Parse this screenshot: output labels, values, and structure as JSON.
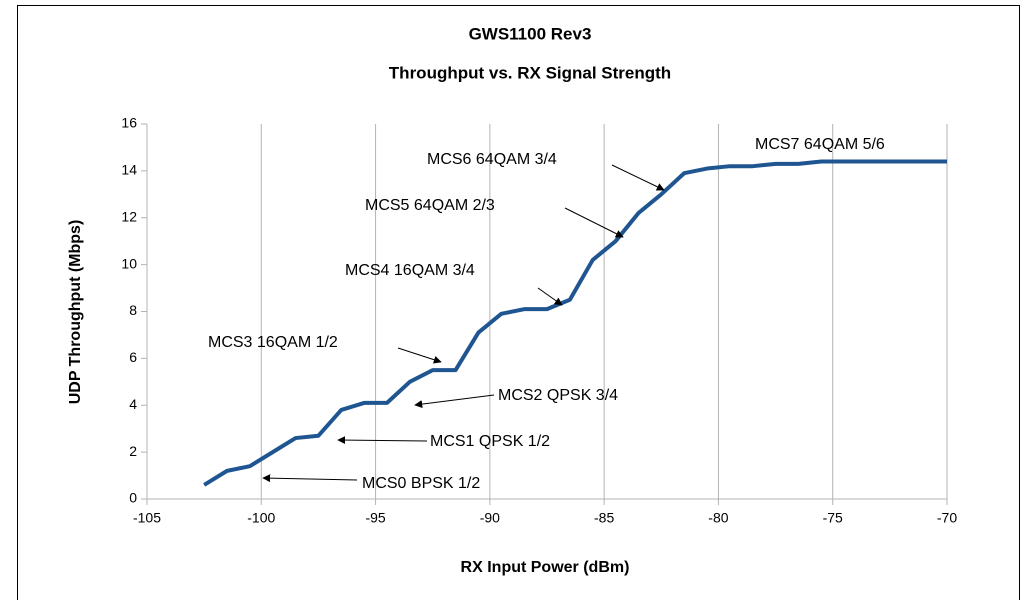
{
  "chart_data": {
    "type": "line",
    "title": "GWS1100 Rev3",
    "subtitle": "Throughput vs. RX Signal Strength",
    "x_label": "RX Input Power (dBm)",
    "y_label": "UDP Throughput (Mbps)",
    "x": [
      -102.5,
      -101.5,
      -100.5,
      -99.5,
      -98.5,
      -97.5,
      -96.5,
      -95.5,
      -94.5,
      -93.5,
      -92.5,
      -91.5,
      -90.5,
      -89.5,
      -88.5,
      -87.5,
      -86.5,
      -85.5,
      -84.5,
      -83.5,
      -82.5,
      -81.5,
      -80.5,
      -79.5,
      -78.5,
      -77.5,
      -76.5,
      -75.5,
      -70
    ],
    "series": [
      {
        "name": "UDP Throughput",
        "color": "#1f5591",
        "values": [
          0.6,
          1.2,
          1.4,
          2.0,
          2.6,
          2.7,
          3.8,
          4.1,
          4.1,
          5.0,
          5.5,
          5.5,
          7.1,
          7.9,
          8.1,
          8.1,
          8.5,
          10.2,
          11.0,
          12.2,
          13.0,
          13.9,
          14.1,
          14.2,
          14.2,
          14.3,
          14.3,
          14.4,
          14.4
        ]
      }
    ],
    "xlim": [
      -105,
      -70
    ],
    "xticks": [
      -105,
      -100,
      -95,
      -90,
      -85,
      -80,
      -75,
      -70
    ],
    "ylim": [
      0,
      16
    ],
    "yticks": [
      0,
      2,
      4,
      6,
      8,
      10,
      12,
      14,
      16
    ],
    "grid": "x",
    "annotations": [
      "MCS7 64QAM 5/6",
      "MCS6 64QAM 3/4",
      "MCS5 64QAM 2/3",
      "MCS4 16QAM 3/4",
      "MCS3 16QAM 1/2",
      "MCS2 QPSK 3/4",
      "MCS1 QPSK 1/2",
      "MCS0 BPSK 1/2"
    ]
  }
}
